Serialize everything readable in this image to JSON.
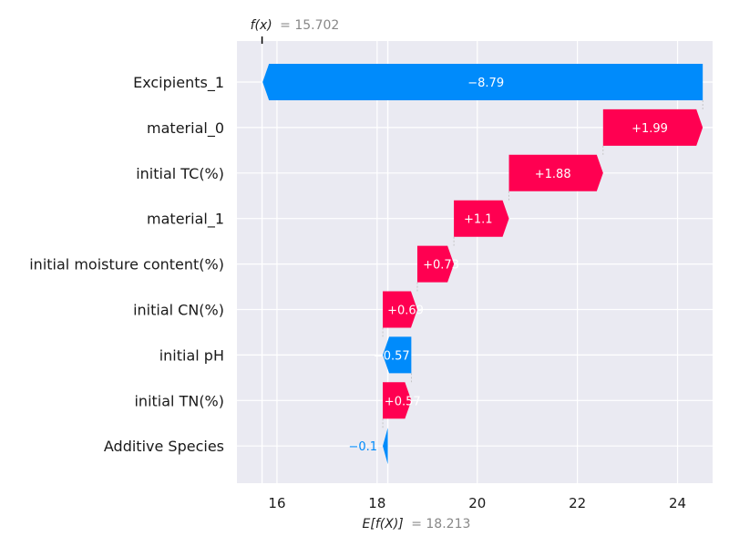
{
  "chart_data": {
    "type": "waterfall",
    "features": [
      {
        "name": "Excipients_1",
        "label": "−8.79",
        "value": -8.79
      },
      {
        "name": "material_0",
        "label": "+1.99",
        "value": 1.99
      },
      {
        "name": "initial TC(%)",
        "label": "+1.88",
        "value": 1.88
      },
      {
        "name": "material_1",
        "label": "+1.1",
        "value": 1.1
      },
      {
        "name": "initial moisture content(%)",
        "label": "+0.73",
        "value": 0.73
      },
      {
        "name": "initial CN(%)",
        "label": "+0.69",
        "value": 0.69
      },
      {
        "name": "initial pH",
        "label": "−0.57",
        "value": -0.57
      },
      {
        "name": "initial TN(%)",
        "label": "+0.57",
        "value": 0.57
      },
      {
        "name": "Additive Species",
        "label": "−0.1",
        "value": -0.1
      }
    ],
    "base_value": 18.213,
    "output_value": 15.702,
    "fx_label": "f(x)",
    "fx_value_text": "= 15.702",
    "efx_label": "E[f(X)]",
    "efx_value_text": "= 18.213",
    "x_ticks": [
      16,
      18,
      20,
      22,
      24
    ],
    "xlim": [
      15.2,
      24.7
    ],
    "colors": {
      "positive": "#ff0051",
      "negative": "#008bfb",
      "background": "#eaeaf2",
      "grid": "#ffffff"
    }
  }
}
